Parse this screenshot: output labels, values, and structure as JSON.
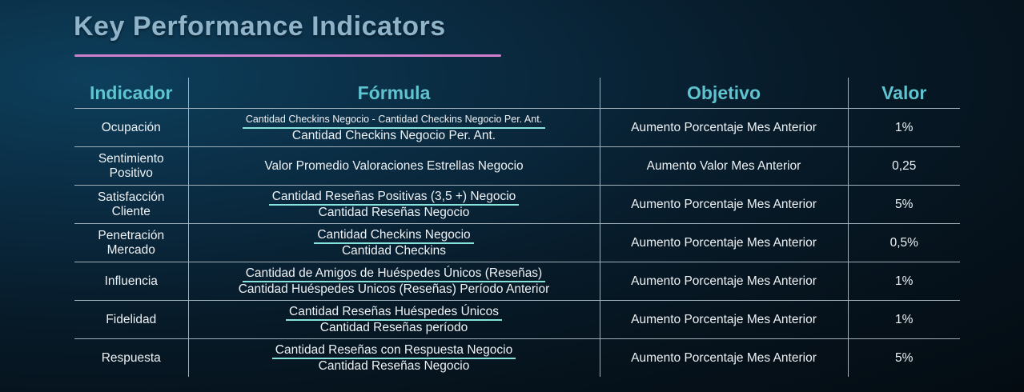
{
  "title": "Key Performance Indicators",
  "colors": {
    "title": "#8fb3c9",
    "underline": "#d07fcf",
    "header": "#5fc3d0",
    "fraction_line": "#86e3dc",
    "background": "#071a28"
  },
  "table": {
    "headers": {
      "indicador": "Indicador",
      "formula": "Fórmula",
      "objetivo": "Objetivo",
      "valor": "Valor"
    },
    "rows": [
      {
        "indicador": "Ocupación",
        "formula_num": "Cantidad Checkins  Negocio - Cantidad Checkins Negocio Per. Ant.",
        "formula_den": "Cantidad Checkins Negocio Per. Ant.",
        "objetivo": "Aumento Porcentaje Mes Anterior",
        "valor": "1%"
      },
      {
        "indicador": "Sentimiento Positivo",
        "formula_text": "Valor Promedio Valoraciones Estrellas Negocio",
        "objetivo": "Aumento Valor Mes Anterior",
        "valor": "0,25"
      },
      {
        "indicador": "Satisfacción Cliente",
        "formula_num": "Cantidad Reseñas Positivas (3,5 +)  Negocio",
        "formula_den": "Cantidad Reseñas Negocio",
        "objetivo": "Aumento Porcentaje Mes Anterior",
        "valor": "5%"
      },
      {
        "indicador": "Penetración Mercado",
        "formula_num": "Cantidad Checkins Negocio",
        "formula_den": "Cantidad Checkins",
        "objetivo": "Aumento Porcentaje Mes Anterior",
        "valor": "0,5%"
      },
      {
        "indicador": "Influencia",
        "formula_num": "Cantidad de Amigos de Huéspedes Únicos (Reseñas)",
        "formula_den": "Cantidad Huéspedes Unicos (Reseñas) Período Anterior",
        "objetivo": "Aumento Porcentaje Mes Anterior",
        "valor": "1%"
      },
      {
        "indicador": "Fidelidad",
        "formula_num": "Cantidad Reseñas Huéspedes Únicos",
        "formula_den": "Cantidad Reseñas período",
        "objetivo": "Aumento Porcentaje Mes Anterior",
        "valor": "1%"
      },
      {
        "indicador": "Respuesta",
        "formula_num": "Cantidad Reseñas con Respuesta Negocio",
        "formula_den": "Cantidad Reseñas Negocio",
        "objetivo": "Aumento Porcentaje Mes Anterior",
        "valor": "5%"
      }
    ]
  }
}
